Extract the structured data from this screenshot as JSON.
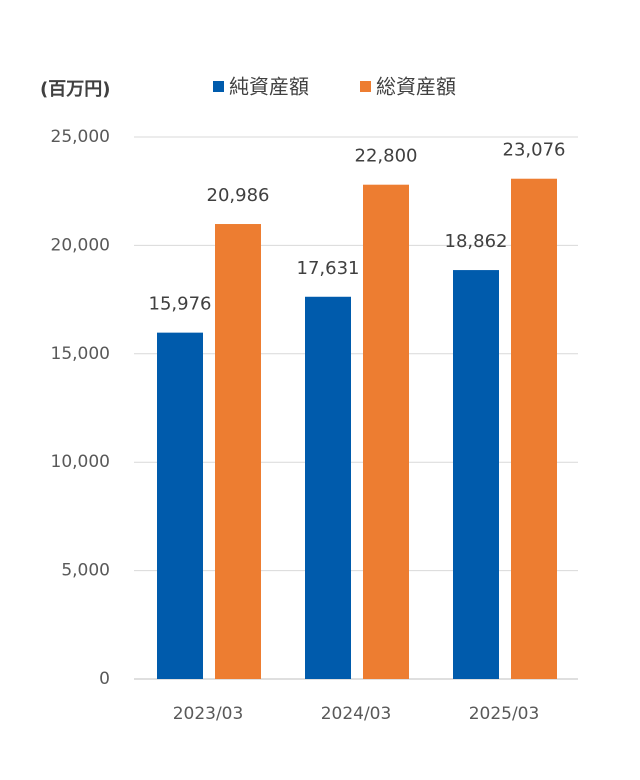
{
  "chart_data": {
    "type": "bar",
    "ylabel": "(百万円)",
    "categories": [
      "2023/03",
      "2024/03",
      "2025/03"
    ],
    "series": [
      {
        "name": "純資産額",
        "color": "#005bac",
        "values": [
          15976,
          17631,
          18862
        ],
        "value_labels": [
          "15,976",
          "17,631",
          "18,862"
        ]
      },
      {
        "name": "総資産額",
        "color": "#ed7d31",
        "values": [
          20986,
          22800,
          23076
        ],
        "value_labels": [
          "20,986",
          "22,800",
          "23,076"
        ]
      }
    ],
    "ylim": [
      0,
      25000
    ],
    "yticks": [
      0,
      {
        "value": 5000,
        "label": "5,000"
      },
      {
        "value": 10000,
        "label": "10,000"
      },
      {
        "value": 15000,
        "label": "15,000"
      },
      {
        "value": 20000,
        "label": "20,000"
      },
      {
        "value": 25000,
        "label": "25,000"
      }
    ],
    "grid": true
  }
}
